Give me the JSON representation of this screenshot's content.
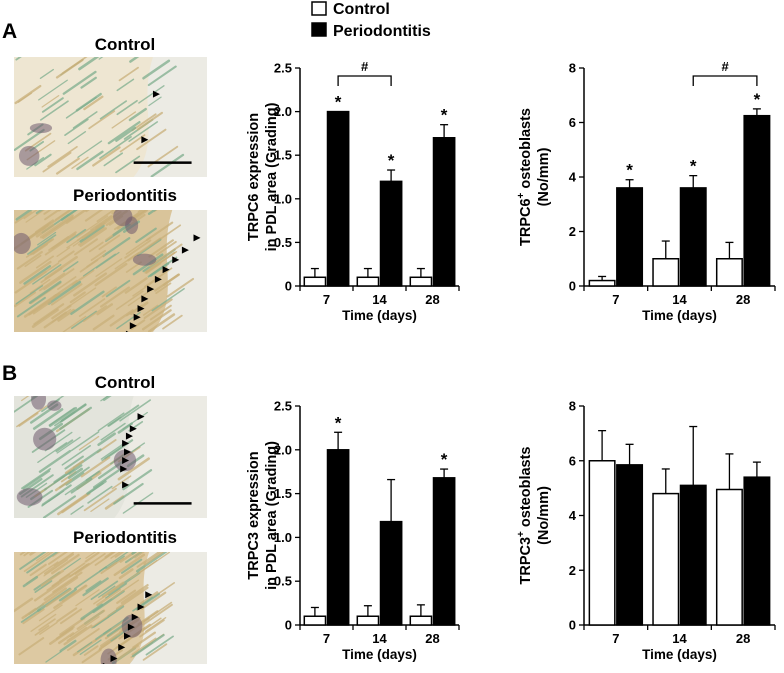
{
  "panel_labels": [
    "A",
    "B"
  ],
  "legend": {
    "items": [
      {
        "label": "Control",
        "fill": "#ffffff"
      },
      {
        "label": "Periodontitis",
        "fill": "#000000"
      }
    ]
  },
  "histology": [
    {
      "panel": "A",
      "top_label": "Control",
      "bottom_label": "Periodontitis"
    },
    {
      "panel": "B",
      "top_label": "Control",
      "bottom_label": "Periodontitis"
    }
  ],
  "colors": {
    "tissue_base": "#e9dcc0",
    "tissue_fiber": "#c9b07a",
    "stain_green": "#7fae8e",
    "nucleus_purple": "#6f5a6e",
    "control_bar": "#ffffff",
    "periodontitis_bar": "#000000"
  },
  "chart_data": [
    {
      "type": "bar",
      "panel": "A",
      "ylabel_lines": [
        "TRPC6 expression",
        "in PDL area (Grading)"
      ],
      "xlabel": "Time (days)",
      "categories": [
        "7",
        "14",
        "28"
      ],
      "ylim": [
        0,
        2.5
      ],
      "yticks": [
        0,
        0.5,
        1.0,
        1.5,
        2.0,
        2.5
      ],
      "ytick_labels": [
        "0",
        "0.5",
        "1.0",
        "1.5",
        "2.0",
        "2.5"
      ],
      "series": [
        {
          "name": "Control",
          "values": [
            0.1,
            0.1,
            0.1
          ],
          "errors": [
            0.1,
            0.1,
            0.1
          ]
        },
        {
          "name": "Periodontitis",
          "values": [
            2.0,
            1.2,
            1.7
          ],
          "errors": [
            0,
            0.13,
            0.15
          ]
        }
      ],
      "stars": [
        "*",
        "*",
        "*"
      ],
      "bracket": {
        "from": 0,
        "to": 1,
        "label": "#"
      },
      "grid": false
    },
    {
      "type": "bar",
      "panel": "A",
      "ylabel_parts": [
        "TRPC6",
        "+",
        " osteoblasts"
      ],
      "ylabel_line2": "(No/mm)",
      "xlabel": "Time (days)",
      "categories": [
        "7",
        "14",
        "28"
      ],
      "ylim": [
        0,
        8
      ],
      "yticks": [
        0,
        2,
        4,
        6,
        8
      ],
      "ytick_labels": [
        "0",
        "2",
        "4",
        "6",
        "8"
      ],
      "series": [
        {
          "name": "Control",
          "values": [
            0.2,
            1.0,
            1.0
          ],
          "errors": [
            0.15,
            0.65,
            0.6
          ]
        },
        {
          "name": "Periodontitis",
          "values": [
            3.6,
            3.6,
            6.25
          ],
          "errors": [
            0.3,
            0.45,
            0.25
          ]
        }
      ],
      "stars": [
        "*",
        "*",
        "*"
      ],
      "bracket": {
        "from": 1,
        "to": 2,
        "label": "#"
      },
      "grid": false
    },
    {
      "type": "bar",
      "panel": "B",
      "ylabel_lines": [
        "TRPC3 expression",
        "in PDL area (Grading)"
      ],
      "xlabel": "Time (days)",
      "categories": [
        "7",
        "14",
        "28"
      ],
      "ylim": [
        0,
        2.5
      ],
      "yticks": [
        0,
        0.5,
        1.0,
        1.5,
        2.0,
        2.5
      ],
      "ytick_labels": [
        "0",
        "0.5",
        "1.0",
        "1.5",
        "2.0",
        "2.5"
      ],
      "series": [
        {
          "name": "Control",
          "values": [
            0.1,
            0.1,
            0.1
          ],
          "errors": [
            0.1,
            0.12,
            0.13
          ]
        },
        {
          "name": "Periodontitis",
          "values": [
            2.0,
            1.18,
            1.68
          ],
          "errors": [
            0.2,
            0.48,
            0.1
          ]
        }
      ],
      "stars": [
        "*",
        "",
        "*"
      ],
      "bracket": null,
      "grid": false
    },
    {
      "type": "bar",
      "panel": "B",
      "ylabel_parts": [
        "TRPC3",
        "+",
        " osteoblasts"
      ],
      "ylabel_line2": "(No/mm)",
      "xlabel": "Time (days)",
      "categories": [
        "7",
        "14",
        "28"
      ],
      "ylim": [
        0,
        8
      ],
      "yticks": [
        0,
        2,
        4,
        6,
        8
      ],
      "ytick_labels": [
        "0",
        "2",
        "4",
        "6",
        "8"
      ],
      "series": [
        {
          "name": "Control",
          "values": [
            6.0,
            4.8,
            4.95
          ],
          "errors": [
            1.1,
            0.9,
            1.3
          ]
        },
        {
          "name": "Periodontitis",
          "values": [
            5.85,
            5.1,
            5.4
          ],
          "errors": [
            0.75,
            2.15,
            0.55
          ]
        }
      ],
      "stars": [
        "",
        "",
        ""
      ],
      "bracket": null,
      "grid": false
    }
  ]
}
